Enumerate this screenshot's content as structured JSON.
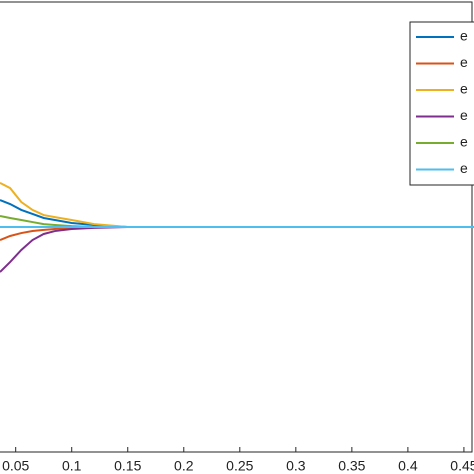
{
  "chart_data": {
    "type": "line",
    "x": [
      0.036,
      0.045,
      0.055,
      0.065,
      0.075,
      0.085,
      0.1,
      0.12,
      0.15,
      0.2,
      0.3,
      0.4,
      0.459
    ],
    "series": [
      {
        "name": "e",
        "color": "#0072BD",
        "values": [
          0.12,
          0.102,
          0.076,
          0.058,
          0.04,
          0.031,
          0.018,
          0.009,
          0,
          0,
          0,
          0,
          0
        ]
      },
      {
        "name": "e",
        "color": "#D95319",
        "values": [
          -0.058,
          -0.04,
          -0.027,
          -0.018,
          -0.013,
          -0.009,
          -0.004,
          0,
          0,
          0,
          0,
          0,
          0
        ]
      },
      {
        "name": "e",
        "color": "#EDB120",
        "values": [
          0.196,
          0.173,
          0.111,
          0.076,
          0.053,
          0.044,
          0.031,
          0.013,
          0,
          0,
          0,
          0,
          0
        ]
      },
      {
        "name": "e",
        "color": "#7E2F8E",
        "values": [
          -0.2,
          -0.156,
          -0.102,
          -0.058,
          -0.031,
          -0.018,
          -0.009,
          -0.004,
          0,
          0,
          0,
          0,
          0
        ]
      },
      {
        "name": "e",
        "color": "#77AC30",
        "values": [
          0.049,
          0.04,
          0.031,
          0.022,
          0.013,
          0.009,
          0.004,
          0,
          0,
          0,
          0,
          0,
          0
        ]
      },
      {
        "name": "e",
        "color": "#4DBEEE",
        "values": [
          0,
          0,
          0,
          0,
          0,
          0,
          0,
          0,
          0,
          0,
          0,
          0,
          0
        ]
      }
    ],
    "xlim": [
      0.036,
      0.459
    ],
    "ylim": [
      -1,
      1
    ],
    "xticks": [
      0.05,
      0.1,
      0.15,
      0.2,
      0.25,
      0.3,
      0.35,
      0.4,
      0.45
    ],
    "legend": "top-right"
  }
}
